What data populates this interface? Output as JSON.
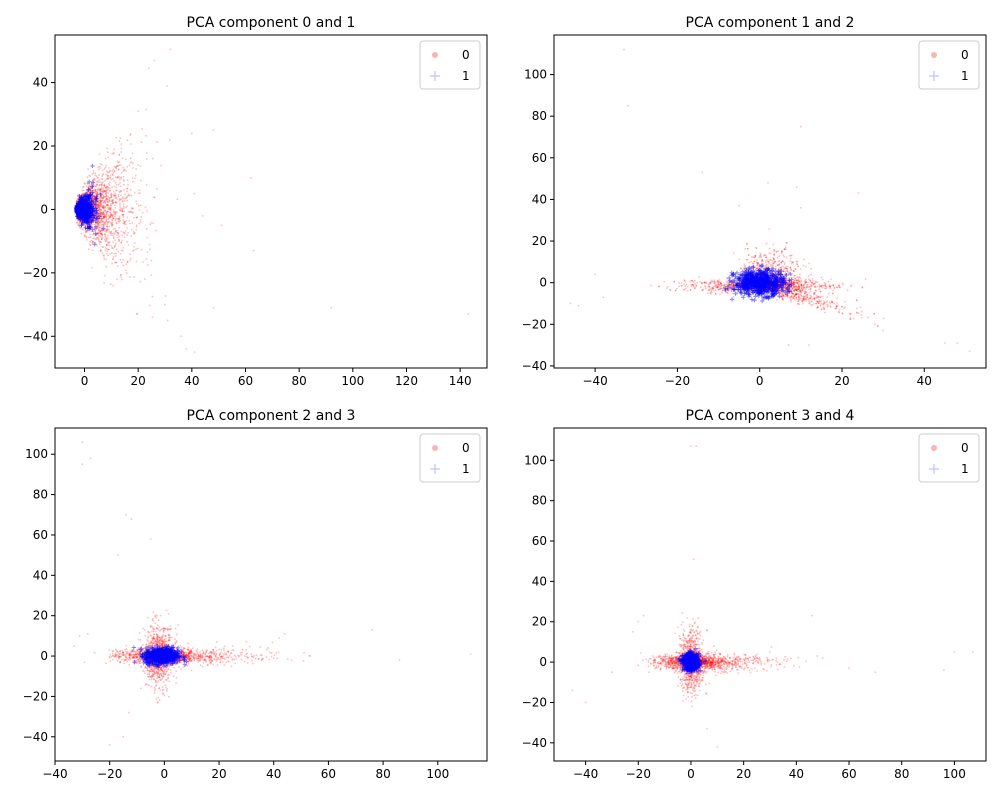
{
  "figure": {
    "background": "#ffffff"
  },
  "colors": {
    "class0": "#ff0000",
    "class1": "#0000ff",
    "axis": "#000000"
  },
  "chart_data": [
    {
      "type": "scatter",
      "title": "PCA component 0 and 1",
      "xlim": [
        -11,
        150
      ],
      "ylim": [
        -50,
        55
      ],
      "xticks": [
        0,
        20,
        40,
        60,
        80,
        100,
        120,
        140
      ],
      "yticks": [
        -40,
        -20,
        0,
        20,
        40
      ],
      "legend": {
        "position": "top-right",
        "labels": [
          "0",
          "1"
        ]
      },
      "series": [
        {
          "name": "0",
          "color": "#ff0000",
          "marker": "point",
          "opacity": 0.25,
          "cluster": {
            "shape": "cone",
            "apex": [
              -3,
              0
            ],
            "spread_x": 10,
            "spread_y": 9,
            "n": 2000
          },
          "outliers": [
            [
              32,
              50.5
            ],
            [
              26,
              47
            ],
            [
              24,
              44.5
            ],
            [
              20,
              31
            ],
            [
              23,
              31.5
            ],
            [
              40,
              24
            ],
            [
              48,
              25
            ],
            [
              62,
              10
            ],
            [
              41,
              5
            ],
            [
              44,
              -2
            ],
            [
              51,
              -5
            ],
            [
              30,
              -30
            ],
            [
              31,
              -35
            ],
            [
              36,
              -40
            ],
            [
              38,
              -44
            ],
            [
              41,
              -45
            ],
            [
              48,
              -31
            ],
            [
              63,
              -13
            ],
            [
              92,
              -31
            ],
            [
              143,
              -33
            ]
          ]
        },
        {
          "name": "1",
          "color": "#0000ff",
          "marker": "plus",
          "opacity": 0.5,
          "cluster": {
            "shape": "cone",
            "apex": [
              -3,
              0
            ],
            "spread_x": 3,
            "spread_y": 3,
            "n": 700
          },
          "outliers": []
        }
      ]
    },
    {
      "type": "scatter",
      "title": "PCA component 1 and 2",
      "xlim": [
        -50,
        55
      ],
      "ylim": [
        -41,
        119
      ],
      "xticks": [
        -40,
        -20,
        0,
        20,
        40
      ],
      "yticks": [
        -40,
        -20,
        0,
        20,
        40,
        60,
        80,
        100
      ],
      "legend": {
        "position": "top-right",
        "labels": [
          "0",
          "1"
        ]
      },
      "series": [
        {
          "name": "0",
          "color": "#ff0000",
          "marker": "point",
          "opacity": 0.25,
          "cluster": {
            "shape": "triangle",
            "apex": [
              0,
              0
            ],
            "spread_x": 10,
            "spread_y": 7,
            "n": 2000
          },
          "outliers": [
            [
              -33,
              112
            ],
            [
              -32,
              85
            ],
            [
              10,
              75
            ],
            [
              -14,
              53
            ],
            [
              2,
              48
            ],
            [
              9,
              46
            ],
            [
              24,
              43
            ],
            [
              -40,
              4
            ],
            [
              -46,
              -10
            ],
            [
              -44,
              -11
            ],
            [
              -38,
              -7
            ],
            [
              45,
              -29
            ],
            [
              48,
              -29
            ],
            [
              51,
              -33
            ],
            [
              30,
              -23
            ],
            [
              28,
              -20
            ],
            [
              22,
              -17
            ],
            [
              12,
              -30
            ],
            [
              7,
              -30
            ],
            [
              10,
              36
            ],
            [
              -5,
              37
            ]
          ]
        },
        {
          "name": "1",
          "color": "#0000ff",
          "marker": "plus",
          "opacity": 0.5,
          "cluster": {
            "shape": "blob",
            "apex": [
              0,
              0
            ],
            "spread_x": 3,
            "spread_y": 3,
            "n": 700
          },
          "outliers": []
        }
      ]
    },
    {
      "type": "scatter",
      "title": "PCA component 2 and 3",
      "xlim": [
        -40,
        118
      ],
      "ylim": [
        -52,
        113
      ],
      "xticks": [
        -40,
        -20,
        0,
        20,
        40,
        60,
        80,
        100
      ],
      "yticks": [
        -40,
        -20,
        0,
        20,
        40,
        60,
        80,
        100
      ],
      "legend": {
        "position": "top-right",
        "labels": [
          "0",
          "1"
        ]
      },
      "series": [
        {
          "name": "0",
          "color": "#ff0000",
          "marker": "point",
          "opacity": 0.25,
          "cluster": {
            "shape": "cross",
            "apex": [
              -2,
              0
            ],
            "spread_x": 8,
            "spread_y": 6,
            "n": 2000
          },
          "outliers": [
            [
              -30,
              106
            ],
            [
              -30,
              95
            ],
            [
              -27,
              98
            ],
            [
              -14,
              70
            ],
            [
              -12,
              68
            ],
            [
              -17,
              50
            ],
            [
              -5,
              58
            ],
            [
              -20,
              -44
            ],
            [
              -15,
              -40
            ],
            [
              -13,
              -28
            ],
            [
              -33,
              5
            ],
            [
              -31,
              10
            ],
            [
              -28,
              11
            ],
            [
              42,
              9
            ],
            [
              44,
              11
            ],
            [
              53,
              0
            ],
            [
              76,
              13
            ],
            [
              86,
              -2
            ],
            [
              112,
              1
            ],
            [
              40,
              -1
            ],
            [
              25,
              5
            ],
            [
              30,
              7
            ]
          ]
        },
        {
          "name": "1",
          "color": "#0000ff",
          "marker": "plus",
          "opacity": 0.5,
          "cluster": {
            "shape": "blob",
            "apex": [
              -1,
              0
            ],
            "spread_x": 3,
            "spread_y": 2,
            "n": 700
          },
          "outliers": []
        }
      ]
    },
    {
      "type": "scatter",
      "title": "PCA component 3 and 4",
      "xlim": [
        -52,
        112
      ],
      "ylim": [
        -49,
        116
      ],
      "xticks": [
        -40,
        -20,
        0,
        20,
        40,
        60,
        80,
        100
      ],
      "yticks": [
        -40,
        -20,
        0,
        20,
        40,
        60,
        80,
        100
      ],
      "legend": {
        "position": "top-right",
        "labels": [
          "0",
          "1"
        ]
      },
      "series": [
        {
          "name": "0",
          "color": "#ff0000",
          "marker": "point",
          "opacity": 0.25,
          "cluster": {
            "shape": "cross",
            "apex": [
              0,
              0
            ],
            "spread_x": 7,
            "spread_y": 6,
            "n": 2000
          },
          "outliers": [
            [
              0,
              107
            ],
            [
              2,
              107
            ],
            [
              1,
              51
            ],
            [
              -45,
              -14
            ],
            [
              -40,
              -20
            ],
            [
              -22,
              15
            ],
            [
              -20,
              20
            ],
            [
              -18,
              23
            ],
            [
              46,
              23
            ],
            [
              48,
              3
            ],
            [
              50,
              2
            ],
            [
              60,
              -3
            ],
            [
              70,
              -5
            ],
            [
              96,
              -4
            ],
            [
              100,
              5
            ],
            [
              107,
              5
            ],
            [
              10,
              -42
            ],
            [
              6,
              -33
            ],
            [
              30,
              5
            ],
            [
              -30,
              -5
            ]
          ]
        },
        {
          "name": "1",
          "color": "#0000ff",
          "marker": "plus",
          "opacity": 0.5,
          "cluster": {
            "shape": "blob",
            "apex": [
              0,
              0
            ],
            "spread_x": 1.5,
            "spread_y": 2,
            "n": 600
          },
          "outliers": []
        }
      ]
    }
  ]
}
